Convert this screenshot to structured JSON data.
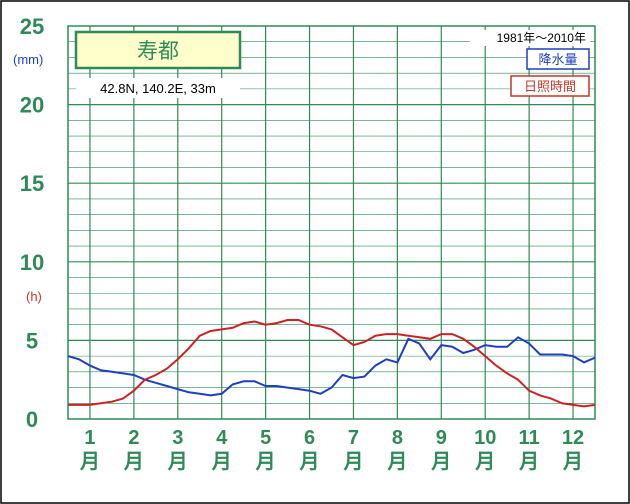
{
  "chart_data": {
    "type": "line",
    "station": "寿都",
    "coordinates": "42.8N,  140.2E,  33m",
    "period": "1981年～2010年",
    "y_unit_left": "(mm)",
    "y_unit_right": "(h)",
    "ylim": [
      0,
      25
    ],
    "y_ticks": [
      "0",
      "5",
      "10",
      "15",
      "20",
      "25"
    ],
    "categories": [
      {
        "num": "1",
        "suffix": "月"
      },
      {
        "num": "2",
        "suffix": "月"
      },
      {
        "num": "3",
        "suffix": "月"
      },
      {
        "num": "4",
        "suffix": "月"
      },
      {
        "num": "5",
        "suffix": "月"
      },
      {
        "num": "6",
        "suffix": "月"
      },
      {
        "num": "7",
        "suffix": "月"
      },
      {
        "num": "8",
        "suffix": "月"
      },
      {
        "num": "9",
        "suffix": "月"
      },
      {
        "num": "10",
        "suffix": "月"
      },
      {
        "num": "11",
        "suffix": "月"
      },
      {
        "num": "12",
        "suffix": "月"
      }
    ],
    "x_range": [
      0.5,
      12.5
    ],
    "series": [
      {
        "name": "降水量",
        "color": "#1f3fbf",
        "x": [
          0.5,
          0.75,
          1.0,
          1.25,
          1.5,
          1.75,
          2.0,
          2.25,
          2.5,
          2.75,
          3.0,
          3.25,
          3.5,
          3.75,
          4.0,
          4.25,
          4.5,
          4.75,
          5.0,
          5.25,
          5.5,
          5.75,
          6.0,
          6.25,
          6.5,
          6.75,
          7.0,
          7.25,
          7.5,
          7.75,
          8.0,
          8.25,
          8.5,
          8.75,
          9.0,
          9.25,
          9.5,
          9.75,
          10.0,
          10.25,
          10.5,
          10.75,
          11.0,
          11.25,
          11.5,
          11.75,
          12.0,
          12.25,
          12.5
        ],
        "values": [
          4.0,
          3.8,
          3.4,
          3.1,
          3.0,
          2.9,
          2.8,
          2.5,
          2.3,
          2.1,
          1.9,
          1.7,
          1.6,
          1.5,
          1.6,
          2.2,
          2.4,
          2.4,
          2.1,
          2.1,
          2.0,
          1.9,
          1.8,
          1.6,
          2.0,
          2.8,
          2.6,
          2.7,
          3.4,
          3.8,
          3.6,
          5.1,
          4.8,
          3.8,
          4.7,
          4.6,
          4.2,
          4.4,
          4.7,
          4.6,
          4.6,
          5.2,
          4.8,
          4.1,
          4.1,
          4.1,
          4.0,
          3.6,
          3.9
        ]
      },
      {
        "name": "日照時間",
        "color": "#cc2222",
        "x": [
          0.5,
          0.75,
          1.0,
          1.25,
          1.5,
          1.75,
          2.0,
          2.25,
          2.5,
          2.75,
          3.0,
          3.25,
          3.5,
          3.75,
          4.0,
          4.25,
          4.5,
          4.75,
          5.0,
          5.25,
          5.5,
          5.75,
          6.0,
          6.25,
          6.5,
          6.75,
          7.0,
          7.25,
          7.5,
          7.75,
          8.0,
          8.25,
          8.5,
          8.75,
          9.0,
          9.25,
          9.5,
          9.75,
          10.0,
          10.25,
          10.5,
          10.75,
          11.0,
          11.25,
          11.5,
          11.75,
          12.0,
          12.25,
          12.5
        ],
        "values": [
          0.9,
          0.9,
          0.9,
          1.0,
          1.1,
          1.3,
          1.8,
          2.5,
          2.8,
          3.2,
          3.8,
          4.5,
          5.3,
          5.6,
          5.7,
          5.8,
          6.1,
          6.2,
          6.0,
          6.1,
          6.3,
          6.3,
          6.0,
          5.9,
          5.7,
          5.2,
          4.7,
          4.9,
          5.3,
          5.4,
          5.4,
          5.3,
          5.2,
          5.1,
          5.4,
          5.4,
          5.1,
          4.6,
          4.0,
          3.4,
          2.9,
          2.5,
          1.8,
          1.5,
          1.3,
          1.0,
          0.9,
          0.8,
          0.9
        ]
      }
    ]
  }
}
